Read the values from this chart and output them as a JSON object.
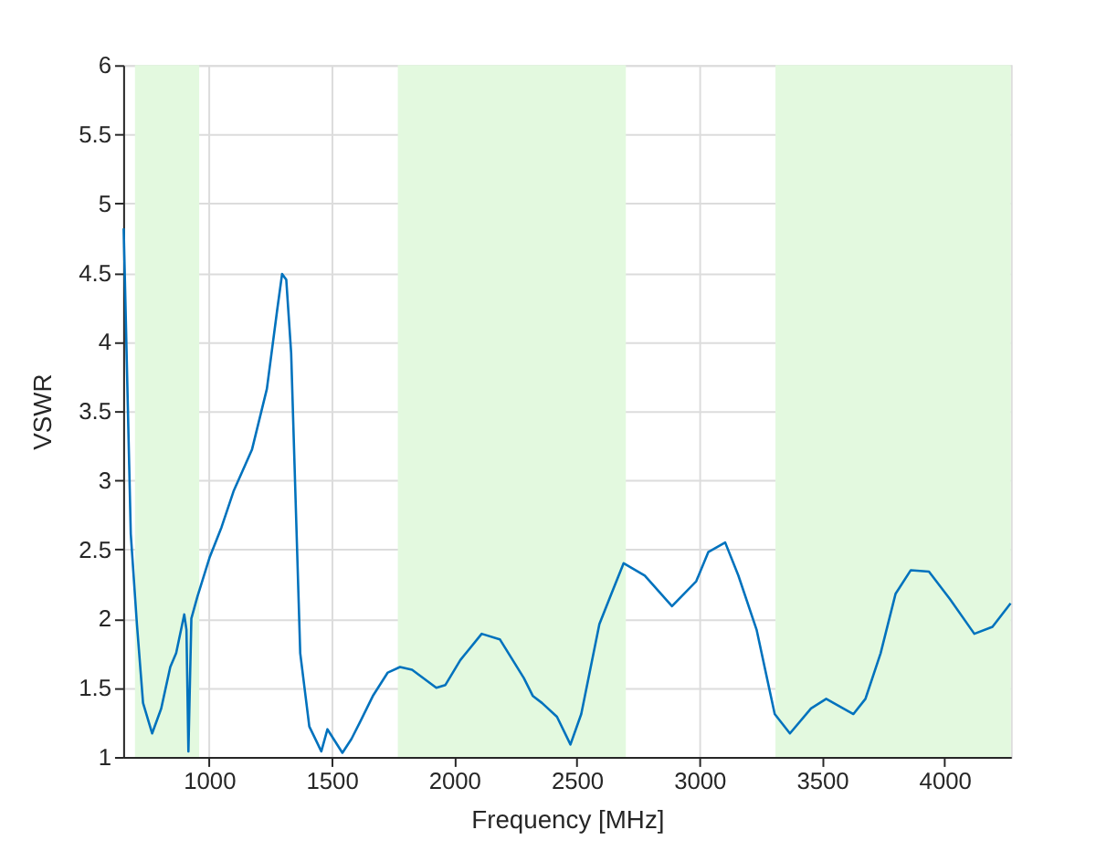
{
  "chart_data": {
    "type": "line",
    "xlabel": "Frequency [MHz]",
    "ylabel": "VSWR",
    "x": [
      652,
      657,
      681,
      706,
      731,
      768,
      805,
      842,
      866,
      899,
      908,
      916,
      928,
      953,
      1002,
      1051,
      1100,
      1175,
      1236,
      1278,
      1298,
      1315,
      1335,
      1372,
      1409,
      1458,
      1483,
      1544,
      1581,
      1618,
      1668,
      1729,
      1779,
      1828,
      1927,
      1964,
      2025,
      2112,
      2186,
      2284,
      2321,
      2358,
      2419,
      2474,
      2518,
      2592,
      2641,
      2691,
      2777,
      2888,
      2987,
      3036,
      3105,
      3159,
      3233,
      3307,
      3369,
      3455,
      3517,
      3628,
      3677,
      3739,
      3800,
      3862,
      3936,
      4022,
      4121,
      4195,
      4269
    ],
    "series": [
      {
        "color": "#0072bd",
        "values": [
          4.82,
          4.45,
          2.61,
          1.96,
          1.39,
          1.17,
          1.35,
          1.65,
          1.75,
          2.03,
          1.92,
          1.04,
          2.0,
          2.16,
          2.44,
          2.66,
          2.92,
          3.22,
          3.66,
          4.23,
          4.49,
          4.45,
          3.92,
          1.75,
          1.22,
          1.04,
          1.2,
          1.03,
          1.13,
          1.26,
          1.44,
          1.61,
          1.65,
          1.63,
          1.5,
          1.52,
          1.7,
          1.89,
          1.85,
          1.57,
          1.44,
          1.39,
          1.29,
          1.09,
          1.31,
          1.96,
          2.18,
          2.4,
          2.31,
          2.09,
          2.27,
          2.48,
          2.55,
          2.31,
          1.92,
          1.31,
          1.17,
          1.35,
          1.42,
          1.31,
          1.42,
          1.75,
          2.18,
          2.35,
          2.34,
          2.14,
          1.89,
          1.94,
          2.11
        ]
      }
    ],
    "xlim": [
      650,
      4270
    ],
    "xticks": [
      1000,
      1500,
      2000,
      2500,
      3000,
      3500,
      4000
    ],
    "ylim": [
      1,
      6
    ],
    "yticks": [
      1,
      1.5,
      2,
      2.5,
      3,
      3.5,
      4,
      4.5,
      5,
      5.5,
      6
    ],
    "bands": [
      {
        "axis": "x",
        "from": 698,
        "to": 960,
        "color": "#e3f9df"
      },
      {
        "axis": "x",
        "from": 1770,
        "to": 2700,
        "color": "#e3f9df"
      },
      {
        "axis": "x",
        "from": 3310,
        "to": 4270,
        "color": "#e3f9df"
      }
    ],
    "grid": true,
    "line_style": "solid",
    "marker": "none"
  }
}
